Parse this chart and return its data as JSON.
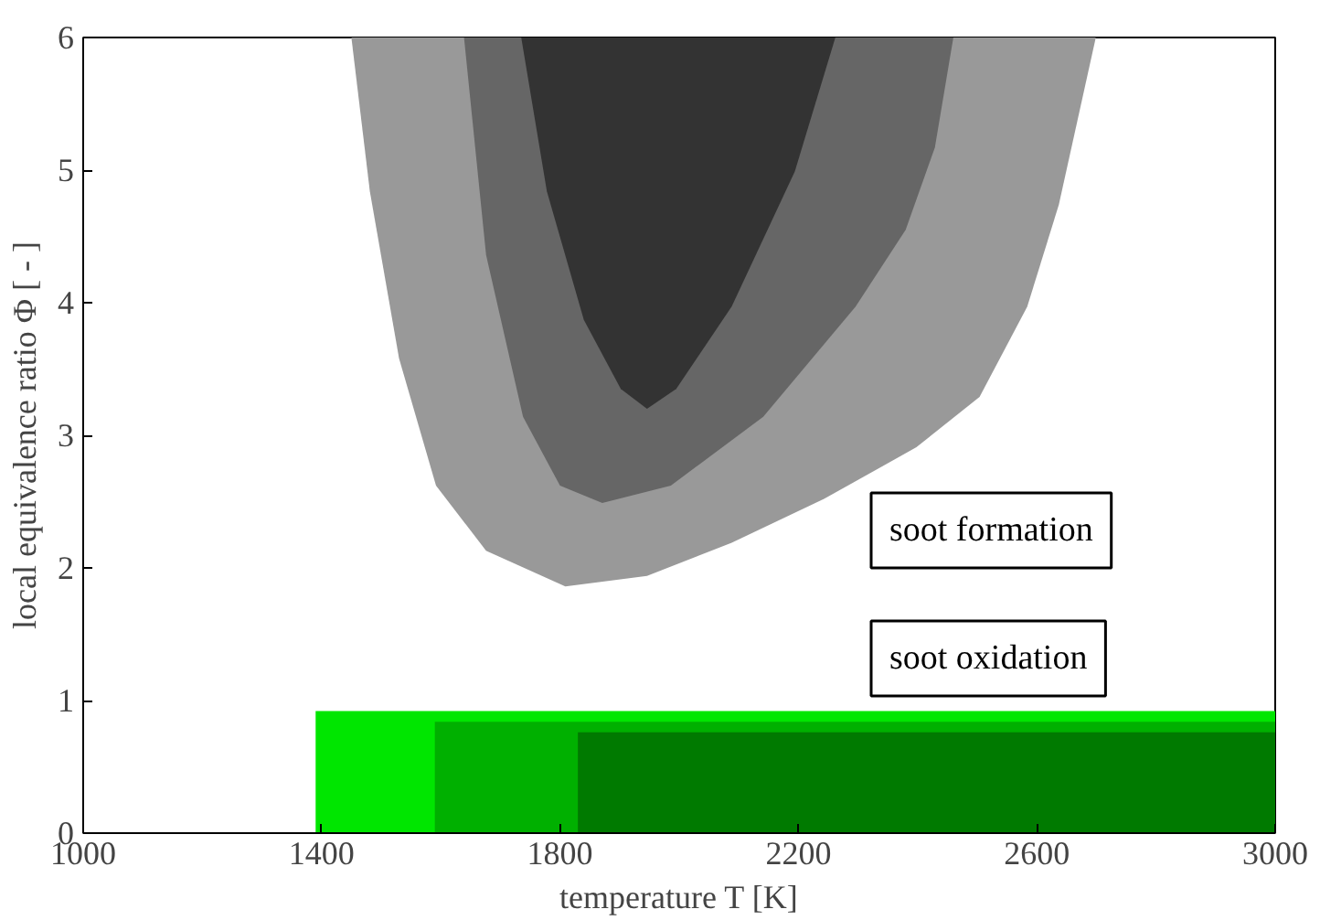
{
  "chart_data": {
    "type": "area",
    "xlabel": "temperature T [K]",
    "ylabel": "local equivalence ratio Φ [ - ]",
    "xlim": [
      1000,
      3000
    ],
    "ylim": [
      0,
      6
    ],
    "xticks": [
      1000,
      1400,
      1800,
      2200,
      2600,
      3000
    ],
    "yticks": [
      0,
      1,
      2,
      3,
      4,
      5,
      6
    ],
    "grid": false,
    "series": [
      {
        "color": "#999999",
        "x": [
          1450,
          1481,
          1530,
          1592,
          1676,
          1809,
          1946,
          2088,
          2243,
          2398,
          2504,
          2584,
          2637,
          2699
        ],
        "values": [
          6.0,
          4.84,
          3.58,
          2.62,
          2.13,
          1.86,
          1.94,
          2.19,
          2.52,
          2.91,
          3.29,
          3.97,
          4.74,
          6.0
        ]
      },
      {
        "color": "#666666",
        "x": [
          1639,
          1676,
          1738,
          1800,
          1871,
          1986,
          2141,
          2296,
          2380,
          2429,
          2460
        ],
        "values": [
          6.0,
          4.36,
          3.14,
          2.62,
          2.49,
          2.62,
          3.14,
          3.97,
          4.55,
          5.17,
          6.0
        ]
      },
      {
        "color": "#333333",
        "x": [
          1735,
          1778,
          1840,
          1902,
          1946,
          1995,
          2088,
          2194,
          2262
        ],
        "values": [
          6.0,
          4.84,
          3.87,
          3.35,
          3.2,
          3.35,
          3.97,
          4.99,
          6.0
        ]
      },
      {
        "color": "#00e600",
        "x": [
          1390,
          1390,
          3000,
          3000
        ],
        "values": [
          0,
          0.92,
          0.92,
          0
        ]
      },
      {
        "color": "#00b000",
        "x": [
          1590,
          1590,
          3000,
          3000
        ],
        "values": [
          0,
          0.84,
          0.84,
          0
        ]
      },
      {
        "color": "#007a00",
        "x": [
          1830,
          1830,
          3000,
          3000
        ],
        "values": [
          0,
          0.76,
          0.76,
          0
        ]
      }
    ],
    "annotations": [
      "soot formation",
      "soot oxidation"
    ]
  }
}
